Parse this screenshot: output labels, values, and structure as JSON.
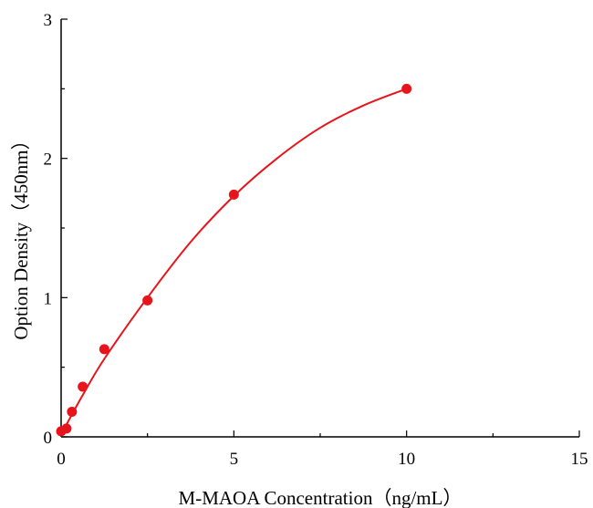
{
  "chart_data": {
    "type": "scatter",
    "title": "",
    "xlabel": "M-MAOA Concentration（ng/mL）",
    "ylabel": "Option Density（450nm）",
    "xlim": [
      0,
      15
    ],
    "ylim": [
      0,
      3
    ],
    "x_ticks": [
      "0",
      "5",
      "10",
      "15"
    ],
    "y_ticks": [
      "0",
      "1",
      "2",
      "3"
    ],
    "grid": false,
    "legend": "none",
    "point_color": "#e8141b",
    "curve_color": "#e8141b",
    "series": [
      {
        "x": [
          0,
          0.156,
          0.313,
          0.625,
          1.25,
          2.5,
          5,
          10
        ],
        "y": [
          0.04,
          0.06,
          0.18,
          0.36,
          0.63,
          0.98,
          1.74,
          2.5
        ]
      }
    ],
    "fit_curve": {
      "x": [
        0,
        0.156,
        0.313,
        0.625,
        1.25,
        2.5,
        3.75,
        5,
        6.25,
        7.5,
        8.75,
        10
      ],
      "y": [
        0.03,
        0.09,
        0.16,
        0.3,
        0.56,
        1.0,
        1.4,
        1.73,
        2.0,
        2.22,
        2.38,
        2.5
      ]
    }
  }
}
